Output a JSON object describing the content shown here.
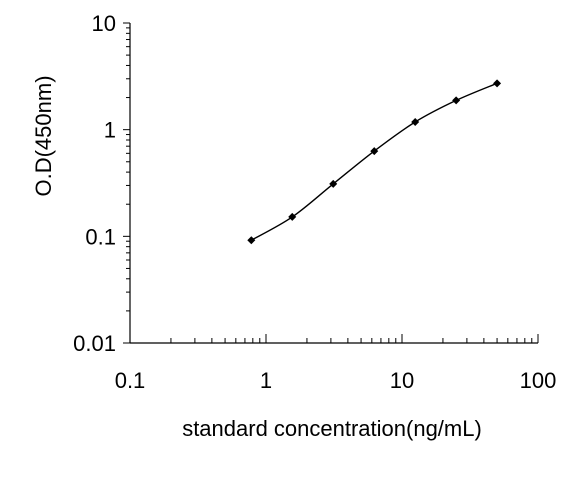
{
  "chart_data": {
    "type": "scatter",
    "title": "",
    "xlabel": "standard concentration(ng/mL)",
    "ylabel": "O.D(450nm)",
    "x_scale": "log",
    "y_scale": "log",
    "xlim": [
      0.1,
      100
    ],
    "ylim": [
      0.01,
      10
    ],
    "x_ticks": [
      0.1,
      1,
      10,
      100
    ],
    "x_tick_labels": [
      "0.1",
      "1",
      "10",
      "100"
    ],
    "y_ticks": [
      0.01,
      0.1,
      1,
      10
    ],
    "y_tick_labels": [
      "0.01",
      "0.1",
      "1",
      "10"
    ],
    "grid": false,
    "legend": "none",
    "series": [
      {
        "type": "scatter",
        "x": [
          0.78,
          1.56,
          3.12,
          6.25,
          12.5,
          25,
          50
        ],
        "y": [
          0.092,
          0.152,
          0.31,
          0.63,
          1.18,
          1.88,
          2.72
        ]
      },
      {
        "type": "line",
        "x": [
          0.78,
          1.56,
          3.12,
          6.25,
          12.5,
          25,
          50
        ],
        "y": [
          0.092,
          0.152,
          0.31,
          0.63,
          1.18,
          1.88,
          2.72
        ]
      }
    ],
    "colors": {
      "marker": "#000000",
      "line": "#000000",
      "axis": "#000000"
    }
  }
}
